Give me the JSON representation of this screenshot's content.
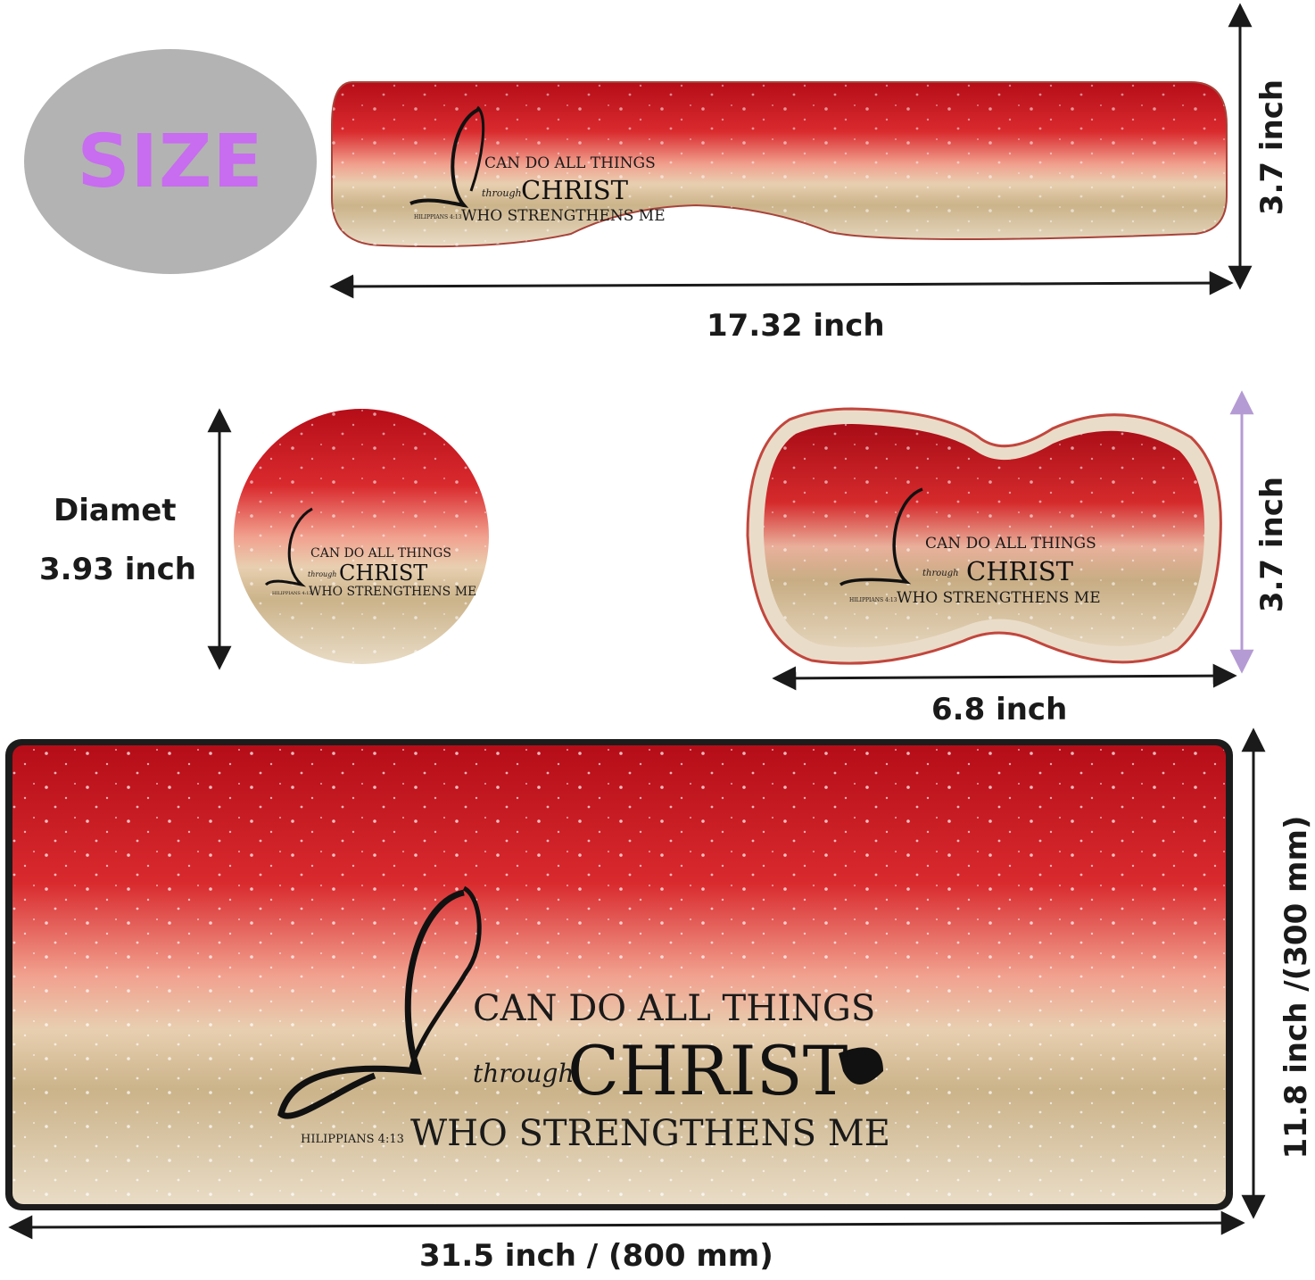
{
  "badge": {
    "label": "SIZE",
    "color": "#c86cf0"
  },
  "design": {
    "line1": "CAN DO ALL THINGS",
    "line2_small": "through",
    "line2_big": "CHRIST",
    "line3": "WHO STRENGTHENS ME",
    "reference": "HILIPPIANS 4:13"
  },
  "products": {
    "wrist_rest": {
      "width": "17.32 inch",
      "height": "3.7 inch"
    },
    "coaster": {
      "diameter_label": "Diamet",
      "diameter_value": "3.93 inch"
    },
    "mouse_wrist_rest": {
      "width": "6.8 inch",
      "height": "3.7 inch"
    },
    "desk_mat": {
      "width": "31.5 inch / (800 mm)",
      "height": "11.8 inch /(300 mm)"
    }
  },
  "colors": {
    "red": "#c8121c",
    "gold": "#d9c6a1",
    "arrow": "#1a1a1a",
    "arrow_purple": "#b59bd4"
  }
}
